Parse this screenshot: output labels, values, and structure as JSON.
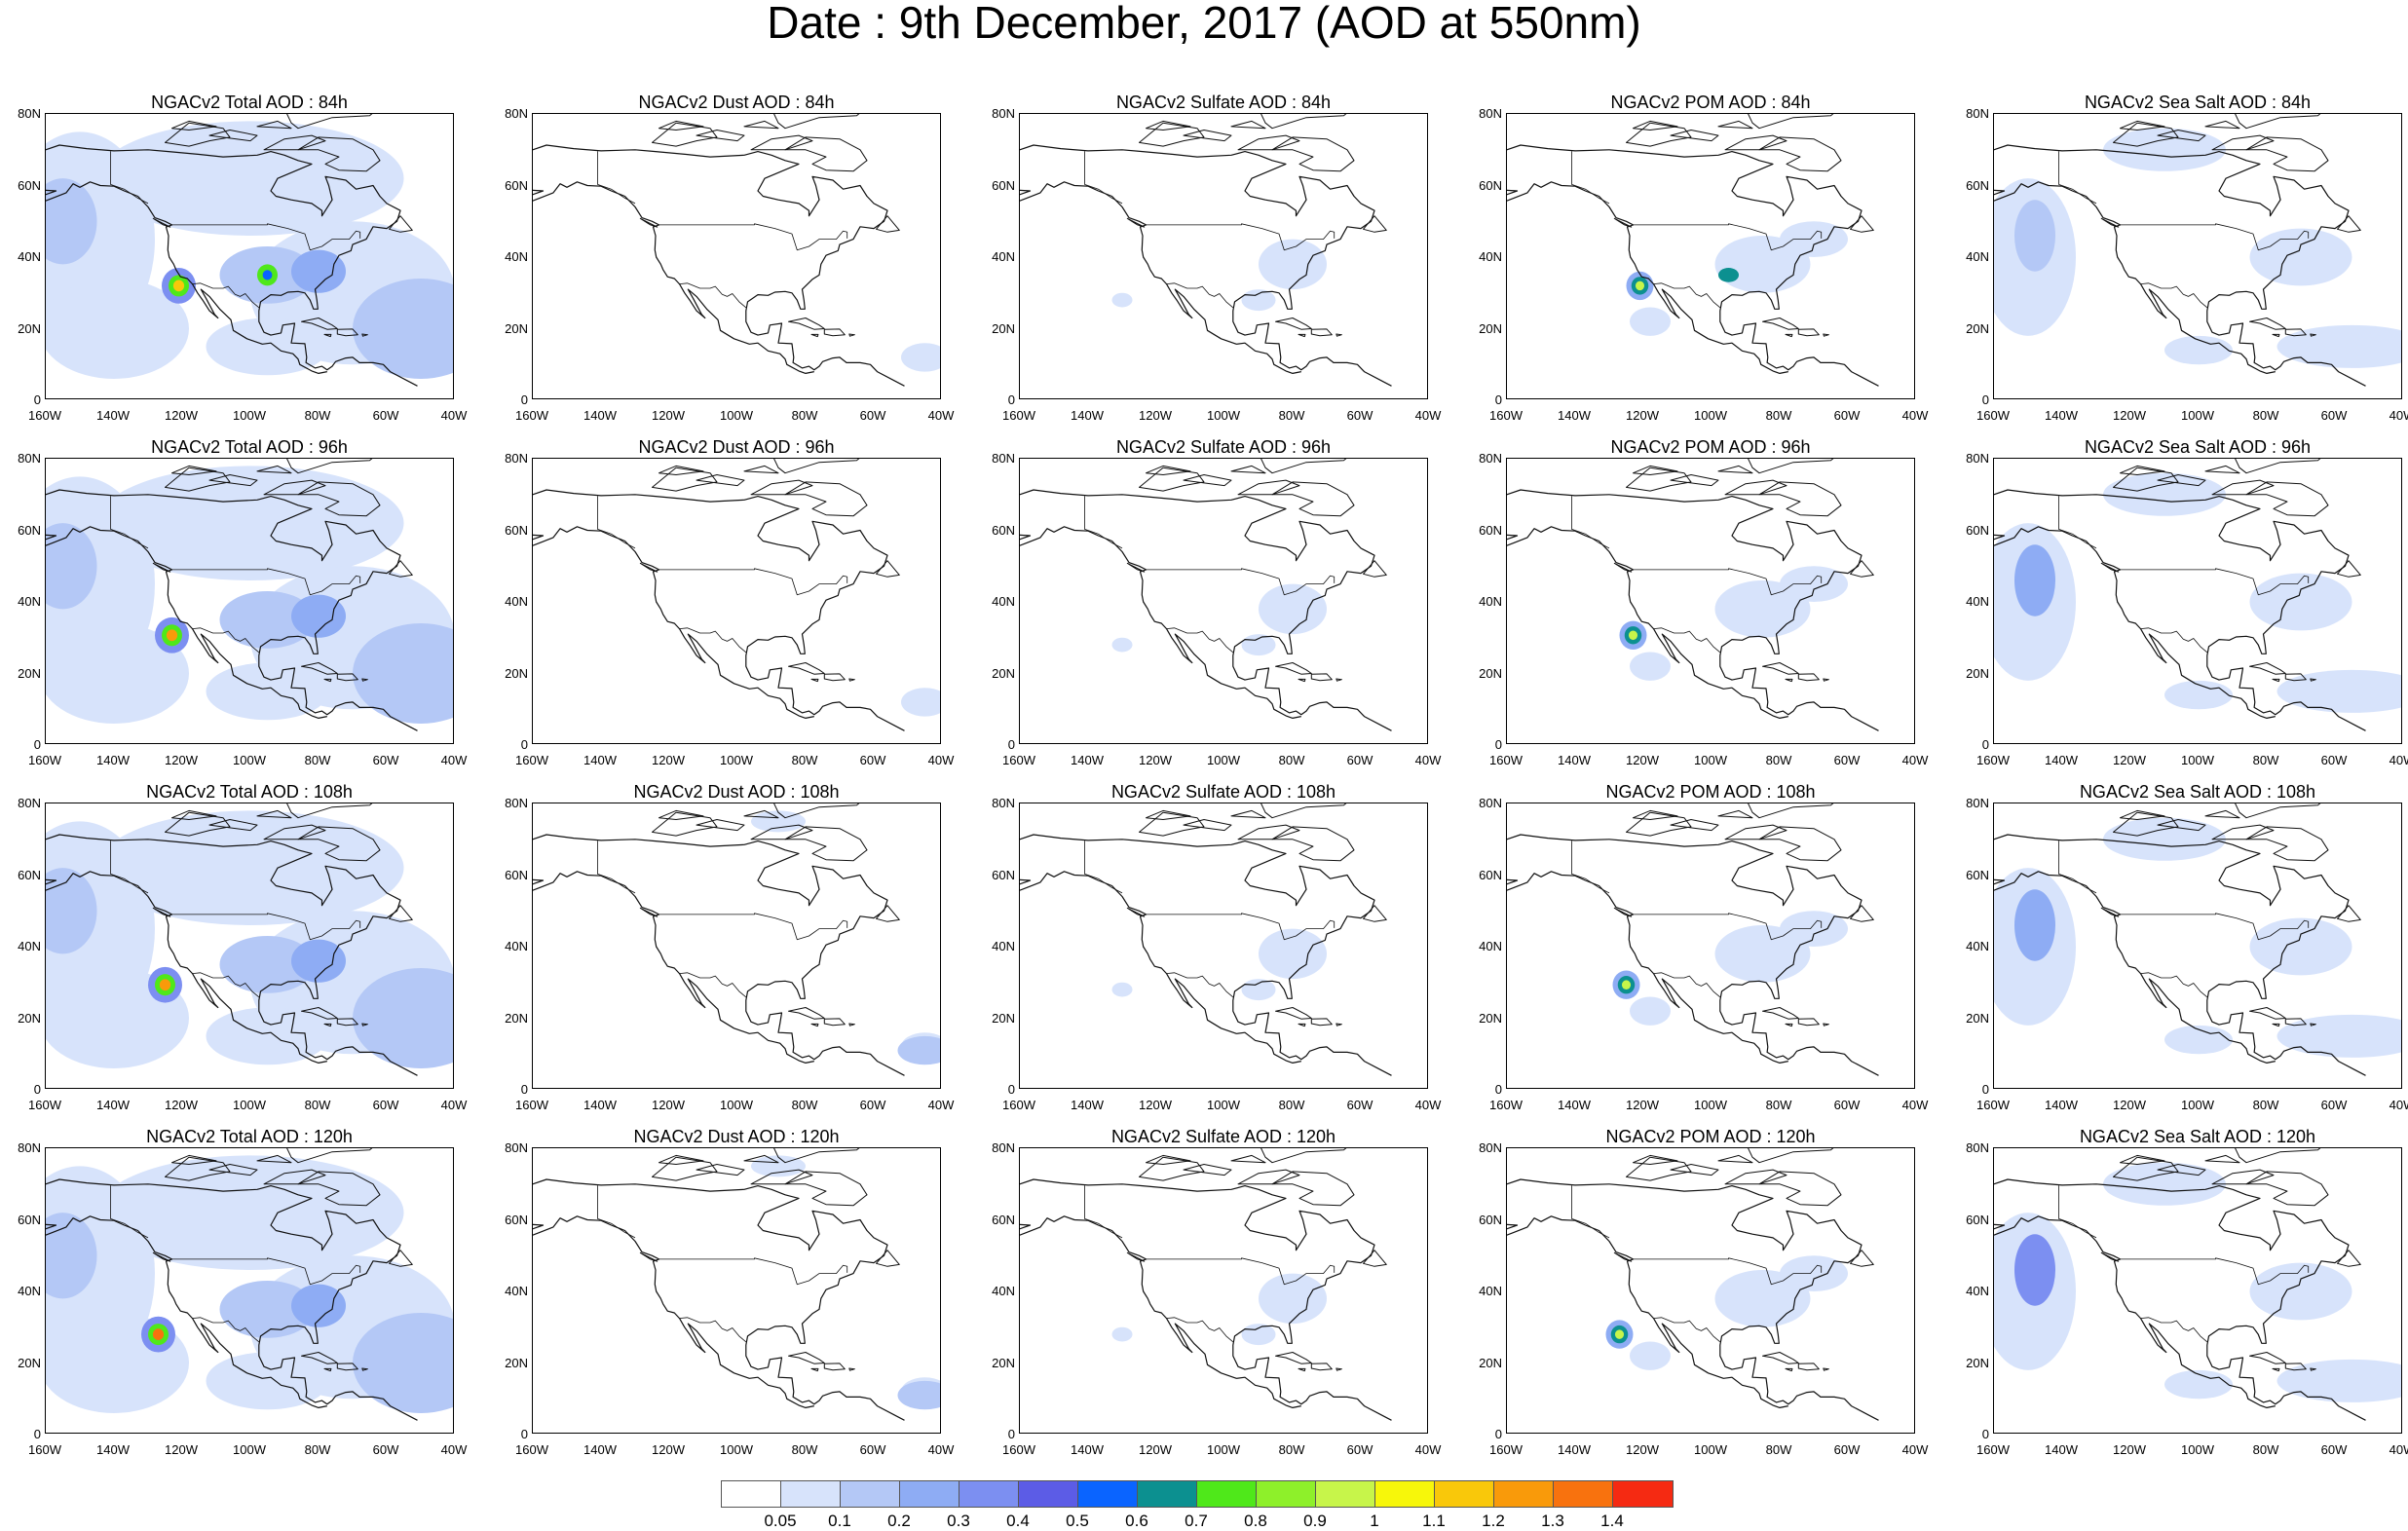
{
  "title": "Date : 9th December, 2017 (AOD at 550nm)",
  "y_ticks": [
    "80N",
    "60N",
    "40N",
    "20N",
    "0"
  ],
  "x_ticks": [
    "160W",
    "140W",
    "120W",
    "100W",
    "80W",
    "60W",
    "40W"
  ],
  "panels": [
    {
      "title": "NGACv2 Total AOD : 84h",
      "species": "total",
      "hour": 84
    },
    {
      "title": "NGACv2 Dust AOD : 84h",
      "species": "dust",
      "hour": 84
    },
    {
      "title": "NGACv2 Sulfate AOD : 84h",
      "species": "sulfate",
      "hour": 84
    },
    {
      "title": "NGACv2 POM AOD : 84h",
      "species": "pom",
      "hour": 84
    },
    {
      "title": "NGACv2 Sea Salt AOD : 84h",
      "species": "seasalt",
      "hour": 84
    },
    {
      "title": "NGACv2 Total AOD : 96h",
      "species": "total",
      "hour": 96
    },
    {
      "title": "NGACv2 Dust AOD : 96h",
      "species": "dust",
      "hour": 96
    },
    {
      "title": "NGACv2 Sulfate AOD : 96h",
      "species": "sulfate",
      "hour": 96
    },
    {
      "title": "NGACv2 POM AOD : 96h",
      "species": "pom",
      "hour": 96
    },
    {
      "title": "NGACv2 Sea Salt AOD : 96h",
      "species": "seasalt",
      "hour": 96
    },
    {
      "title": "NGACv2 Total AOD : 108h",
      "species": "total",
      "hour": 108
    },
    {
      "title": "NGACv2 Dust AOD : 108h",
      "species": "dust",
      "hour": 108
    },
    {
      "title": "NGACv2 Sulfate AOD : 108h",
      "species": "sulfate",
      "hour": 108
    },
    {
      "title": "NGACv2 POM AOD : 108h",
      "species": "pom",
      "hour": 108
    },
    {
      "title": "NGACv2 Sea Salt AOD : 108h",
      "species": "seasalt",
      "hour": 108
    },
    {
      "title": "NGACv2 Total AOD : 120h",
      "species": "total",
      "hour": 120
    },
    {
      "title": "NGACv2 Dust AOD : 120h",
      "species": "dust",
      "hour": 120
    },
    {
      "title": "NGACv2 Sulfate AOD : 120h",
      "species": "sulfate",
      "hour": 120
    },
    {
      "title": "NGACv2 POM AOD : 120h",
      "species": "pom",
      "hour": 120
    },
    {
      "title": "NGACv2 Sea Salt  AOD : 120h",
      "species": "seasalt",
      "hour": 120
    }
  ],
  "colorbar": {
    "labels": [
      "0.05",
      "0.1",
      "0.2",
      "0.3",
      "0.4",
      "0.5",
      "0.6",
      "0.7",
      "0.8",
      "0.9",
      "1",
      "1.1",
      "1.2",
      "1.3",
      "1.4"
    ],
    "colors": [
      "#ffffff",
      "#d7e3fb",
      "#b4c8f6",
      "#8eacf4",
      "#7c8ff1",
      "#5c5ce6",
      "#0a64ff",
      "#0c9090",
      "#4fe81a",
      "#8ef02a",
      "#c7f54a",
      "#f7f70a",
      "#f9c80a",
      "#f99a0a",
      "#f8720e",
      "#f52a12"
    ]
  }
}
